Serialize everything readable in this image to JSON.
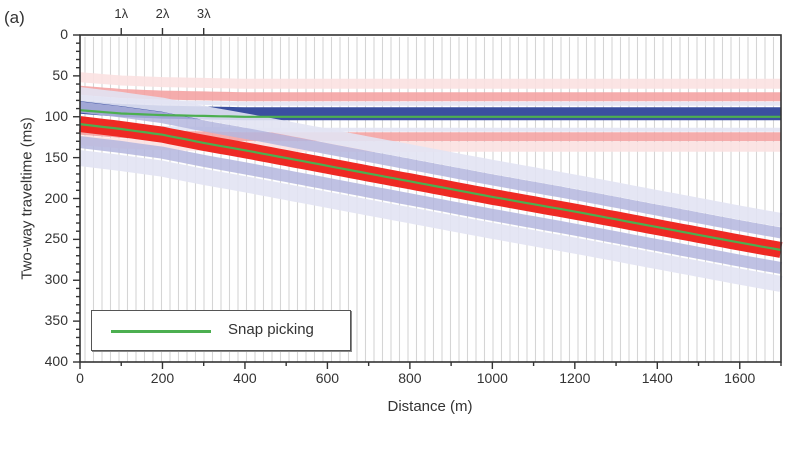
{
  "chart_data": {
    "type": "line",
    "panel_label": "(a)",
    "title": "",
    "xlabel": "Distance (m)",
    "ylabel": "Two-way traveltime (ms)",
    "xlim": [
      0,
      1700
    ],
    "ylim": [
      400,
      0
    ],
    "y_inverted": true,
    "x_ticks": [
      0,
      200,
      400,
      600,
      800,
      1000,
      1200,
      1400,
      1600
    ],
    "y_ticks": [
      0,
      50,
      100,
      150,
      200,
      250,
      300,
      350,
      400
    ],
    "top_annotations": [
      {
        "label": "1λ",
        "x": 100
      },
      {
        "label": "2λ",
        "x": 200
      },
      {
        "label": "3λ",
        "x": 300
      }
    ],
    "legend": {
      "position": "lower left",
      "entries": [
        {
          "label": "Snap picking",
          "color": "#4caf50"
        }
      ]
    },
    "grid": false,
    "background": "seismic wiggle/variable-density image (blue/red)",
    "series": [
      {
        "name": "Snap picking (flat event)",
        "color": "#4caf50",
        "x": [
          0,
          50,
          100,
          200,
          300,
          400,
          600,
          800,
          1000,
          1200,
          1400,
          1600,
          1700
        ],
        "y": [
          92,
          94,
          96,
          98,
          99,
          100,
          100,
          100,
          100,
          100,
          100,
          100,
          100
        ]
      },
      {
        "name": "Snap picking (dipping event)",
        "color": "#4caf50",
        "x": [
          0,
          50,
          100,
          200,
          300,
          400,
          600,
          800,
          1000,
          1200,
          1400,
          1600,
          1700
        ],
        "y": [
          109,
          112,
          115,
          122,
          132,
          141,
          160,
          179,
          198,
          216,
          235,
          254,
          263
        ]
      }
    ]
  },
  "colors": {
    "blue": "#3a4fa0",
    "red": "#ee2a24",
    "pink": "#f4a3a3",
    "light_pink": "#fbe1e1",
    "lavender": "#b4b6de",
    "light_lavender": "#e2e3f3",
    "trace_gray": "#c8c8c8",
    "green": "#4caf50",
    "axis": "#333333"
  }
}
